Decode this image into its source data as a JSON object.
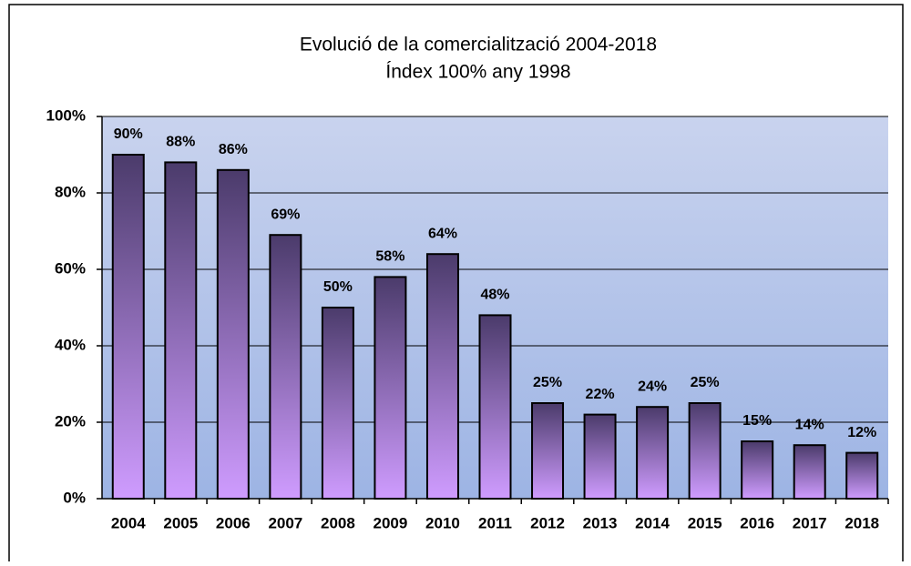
{
  "chart_data": {
    "type": "bar",
    "title": "Evolució de la comercialització 2004-2018",
    "subtitle": "Índex 100% any 1998",
    "categories": [
      "2004",
      "2005",
      "2006",
      "2007",
      "2008",
      "2009",
      "2010",
      "2011",
      "2012",
      "2013",
      "2014",
      "2015",
      "2016",
      "2017",
      "2018"
    ],
    "values": [
      90,
      88,
      86,
      69,
      50,
      58,
      64,
      48,
      25,
      22,
      24,
      25,
      15,
      14,
      12
    ],
    "value_labels": [
      "90%",
      "88%",
      "86%",
      "69%",
      "50%",
      "58%",
      "64%",
      "48%",
      "25%",
      "22%",
      "24%",
      "25%",
      "15%",
      "14%",
      "12%"
    ],
    "ylim": [
      0,
      100
    ],
    "yticks": [
      {
        "value": 0,
        "label": "0%"
      },
      {
        "value": 20,
        "label": "20%"
      },
      {
        "value": 40,
        "label": "40%"
      },
      {
        "value": 60,
        "label": "60%"
      },
      {
        "value": 80,
        "label": "80%"
      },
      {
        "value": 100,
        "label": "100%"
      }
    ],
    "grid": true
  }
}
